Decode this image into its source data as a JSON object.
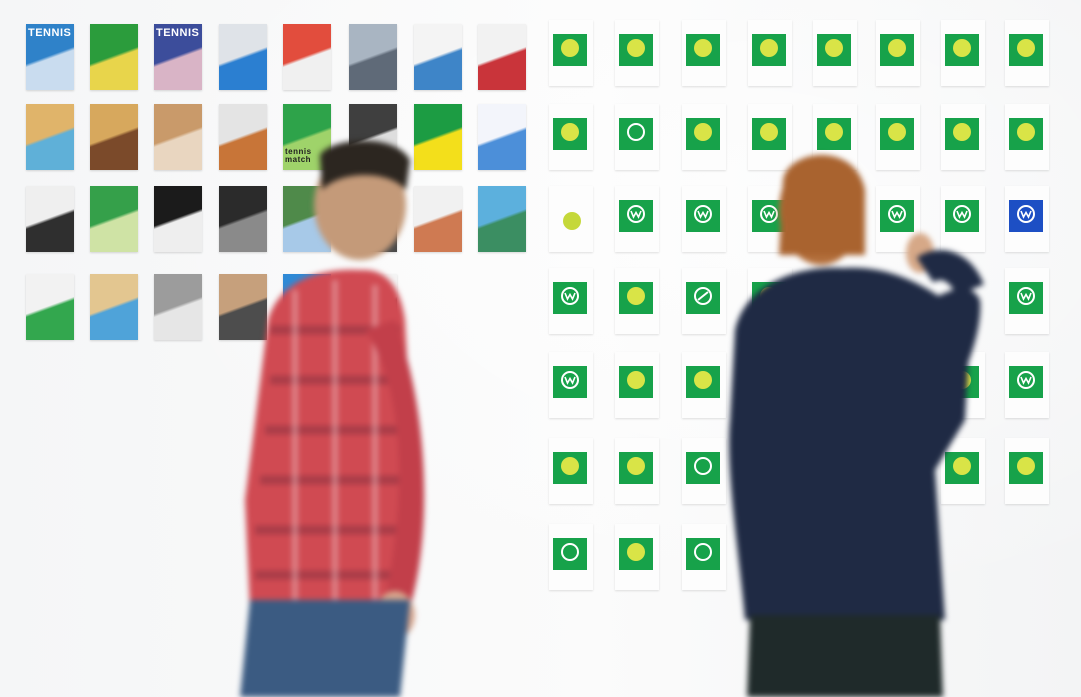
{
  "scene": {
    "description_colors": {
      "wall": "#f7f8f9",
      "logo_green": "#17a24a",
      "logo_blue": "#1d4fc4",
      "ball_yellow": "#d9e447",
      "shirt_red": "#d4454a",
      "sweater_navy": "#1f2a44"
    }
  },
  "prints": [
    {
      "label": "TENNIS",
      "colors": [
        "#2f82c9",
        "#c9dcef"
      ]
    },
    {
      "label": "",
      "colors": [
        "#2b9c3c",
        "#e8d54b"
      ]
    },
    {
      "label": "TENNIS",
      "colors": [
        "#3c4d9b",
        "#d9b4c6"
      ]
    },
    {
      "label": "",
      "colors": [
        "#dfe3e8",
        "#2b7fd1"
      ]
    },
    {
      "label": "",
      "colors": [
        "#e24d3d",
        "#f0f0f0"
      ]
    },
    {
      "label": "",
      "colors": [
        "#a9b5c2",
        "#5f6a78"
      ]
    },
    {
      "label": "",
      "colors": [
        "#f4f4f4",
        "#3e85c8"
      ]
    },
    {
      "label": "",
      "colors": [
        "#f2f2f2",
        "#c9343a"
      ]
    },
    {
      "label": "",
      "colors": [
        "#e0b46a",
        "#5fb0d8"
      ]
    },
    {
      "label": "",
      "colors": [
        "#d7a85d",
        "#7b4a2a"
      ]
    },
    {
      "label": "",
      "colors": [
        "#c99a6a",
        "#e9d6c0"
      ]
    },
    {
      "label": "",
      "colors": [
        "#e4e4e4",
        "#c87538"
      ]
    },
    {
      "label": "tennis match",
      "colors": [
        "#2ea34a",
        "#9fd36a"
      ]
    },
    {
      "label": "",
      "colors": [
        "#3f3f3f",
        "#dedede"
      ]
    },
    {
      "label": "",
      "colors": [
        "#1c9c43",
        "#f3df1b"
      ]
    },
    {
      "label": "",
      "colors": [
        "#f3f5fb",
        "#4c8fd9"
      ]
    },
    {
      "label": "",
      "colors": [
        "#efefef",
        "#2f2f2f"
      ]
    },
    {
      "label": "",
      "colors": [
        "#35a04a",
        "#cfe3a5"
      ]
    },
    {
      "label": "",
      "colors": [
        "#1b1b1b",
        "#eeeeee"
      ]
    },
    {
      "label": "",
      "colors": [
        "#2b2b2b",
        "#8a8a8a"
      ]
    },
    {
      "label": "",
      "colors": [
        "#4f8a4a",
        "#a7c9e8"
      ]
    },
    {
      "label": "",
      "colors": [
        "#c8c8c8",
        "#4a4a4a"
      ]
    },
    {
      "label": "",
      "colors": [
        "#f1f1f1",
        "#cf7a52"
      ]
    },
    {
      "label": "",
      "colors": [
        "#5cb0dd",
        "#3b8e62"
      ]
    },
    {
      "label": "",
      "colors": [
        "#f2f2f2",
        "#33a74e"
      ]
    },
    {
      "label": "",
      "colors": [
        "#e3c690",
        "#4fa3d9"
      ]
    },
    {
      "label": "",
      "colors": [
        "#9c9c9c",
        "#e6e6e6"
      ]
    },
    {
      "label": "",
      "colors": [
        "#c6a07c",
        "#4d4d4d"
      ]
    },
    {
      "label": "",
      "colors": [
        "#2f8ad6",
        "#e3e3e3"
      ]
    },
    {
      "label": "",
      "colors": [
        "#f4f4f4",
        "#585858"
      ]
    }
  ],
  "logo_cards": [
    {
      "glyph": "ball",
      "tile": "green"
    },
    {
      "glyph": "ball",
      "tile": "green"
    },
    {
      "glyph": "ball",
      "tile": "green"
    },
    {
      "glyph": "ball",
      "tile": "green"
    },
    {
      "glyph": "ball",
      "tile": "green"
    },
    {
      "glyph": "ball",
      "tile": "green"
    },
    {
      "glyph": "ball",
      "tile": "green"
    },
    {
      "glyph": "ball",
      "tile": "green"
    },
    {
      "glyph": "ball",
      "tile": "green"
    },
    {
      "glyph": "ring",
      "tile": "green"
    },
    {
      "glyph": "ball",
      "tile": "green"
    },
    {
      "glyph": "ball",
      "tile": "green"
    },
    {
      "glyph": "ball",
      "tile": "green"
    },
    {
      "glyph": "ball",
      "tile": "green"
    },
    {
      "glyph": "ball",
      "tile": "green"
    },
    {
      "glyph": "ball",
      "tile": "green"
    },
    {
      "glyph": "ball",
      "tile": "none"
    },
    {
      "glyph": "w-ring",
      "tile": "green"
    },
    {
      "glyph": "w-ring",
      "tile": "green"
    },
    {
      "glyph": "w-ring",
      "tile": "green"
    },
    {
      "glyph": "w-ring",
      "tile": "green"
    },
    {
      "glyph": "w-ring",
      "tile": "green"
    },
    {
      "glyph": "w-ring",
      "tile": "blue"
    },
    {
      "glyph": "w-ring",
      "tile": "green"
    },
    {
      "glyph": "ball",
      "tile": "green"
    },
    {
      "glyph": "slash",
      "tile": "green"
    },
    {
      "glyph": "ball",
      "tile": "green"
    },
    {
      "glyph": "w-ring",
      "tile": "green"
    },
    {
      "glyph": "w-ring",
      "tile": "green"
    },
    {
      "glyph": "ball",
      "tile": "green"
    },
    {
      "glyph": "ball",
      "tile": "green"
    },
    {
      "glyph": "ball",
      "tile": "green"
    },
    {
      "glyph": "w-ring",
      "tile": "green"
    },
    {
      "glyph": "ball",
      "tile": "green"
    },
    {
      "glyph": "ball",
      "tile": "green"
    },
    {
      "glyph": "ring",
      "tile": "green"
    },
    {
      "glyph": "ball",
      "tile": "green"
    },
    {
      "glyph": "ball",
      "tile": "green"
    },
    {
      "glyph": "ring",
      "tile": "green"
    },
    {
      "glyph": "ball",
      "tile": "green"
    },
    {
      "glyph": "ring",
      "tile": "green"
    }
  ]
}
